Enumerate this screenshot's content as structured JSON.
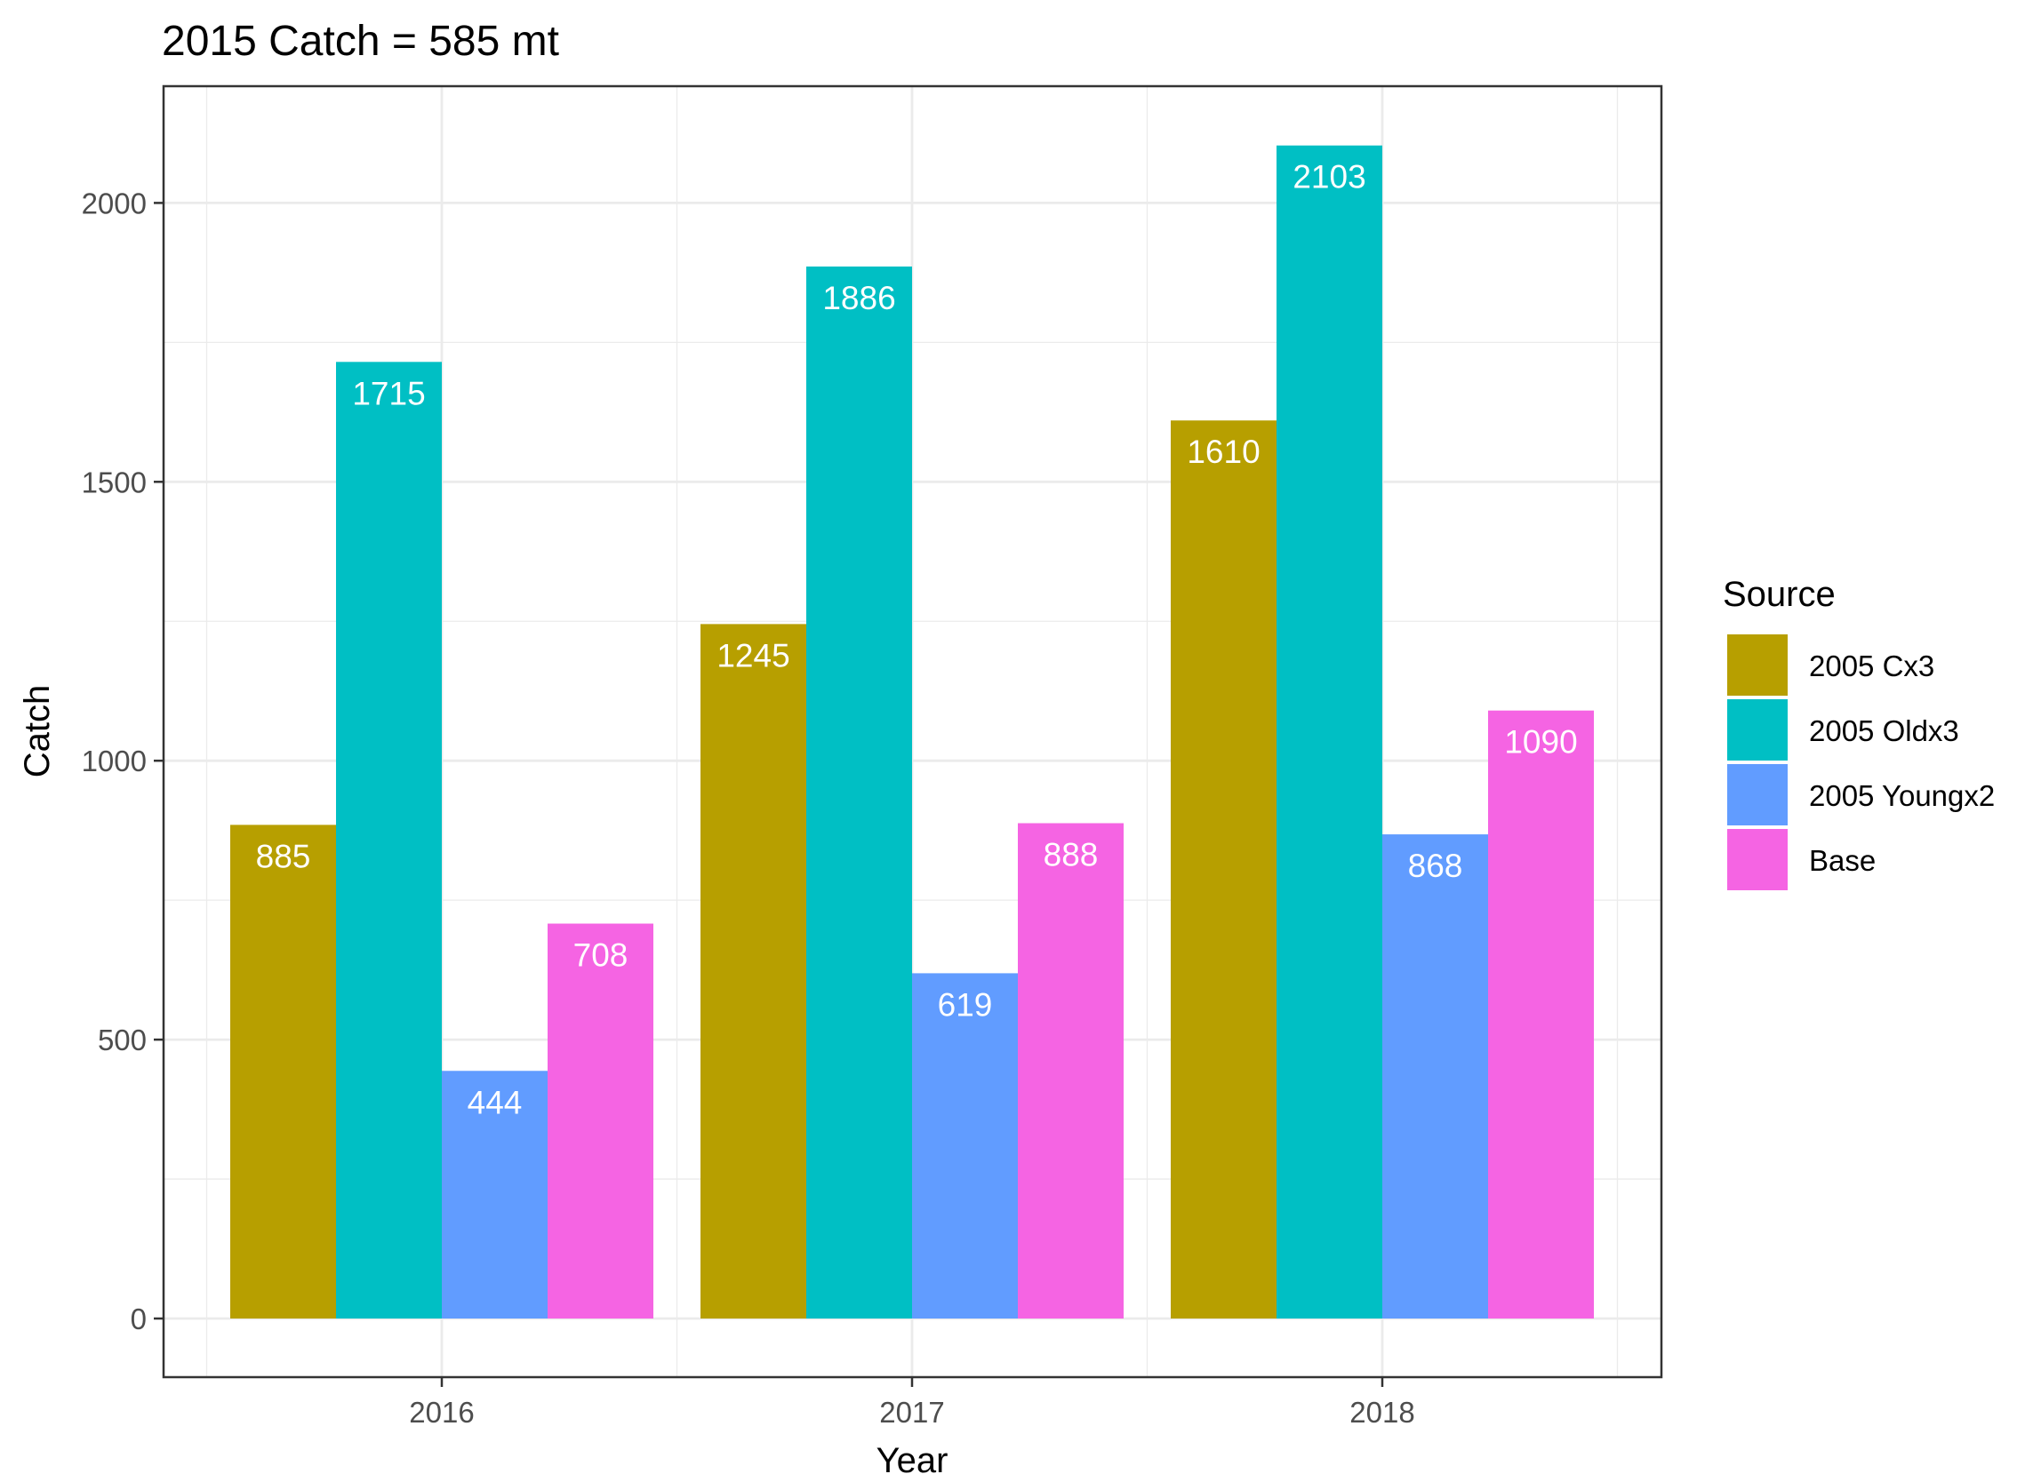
{
  "chart_data": {
    "type": "bar",
    "title": "2015  Catch =  585  mt",
    "xlabel": "Year",
    "ylabel": "Catch",
    "categories": [
      "2016",
      "2017",
      "2018"
    ],
    "series": [
      {
        "name": "2005 Cx3",
        "color": "#B79F00",
        "values": [
          885,
          1245,
          1610
        ]
      },
      {
        "name": "2005 Oldx3",
        "color": "#00BFC4",
        "values": [
          1715,
          1886,
          2103
        ]
      },
      {
        "name": "2005 Youngx2",
        "color": "#619CFF",
        "values": [
          444,
          619,
          868
        ]
      },
      {
        "name": "Base",
        "color": "#F564E3",
        "values": [
          708,
          888,
          1090
        ]
      }
    ],
    "ylim": [
      -100,
      2200
    ],
    "yticks": [
      0,
      500,
      1000,
      1500,
      2000
    ],
    "grid": true,
    "legend": {
      "title": "Source",
      "position": "right"
    }
  }
}
